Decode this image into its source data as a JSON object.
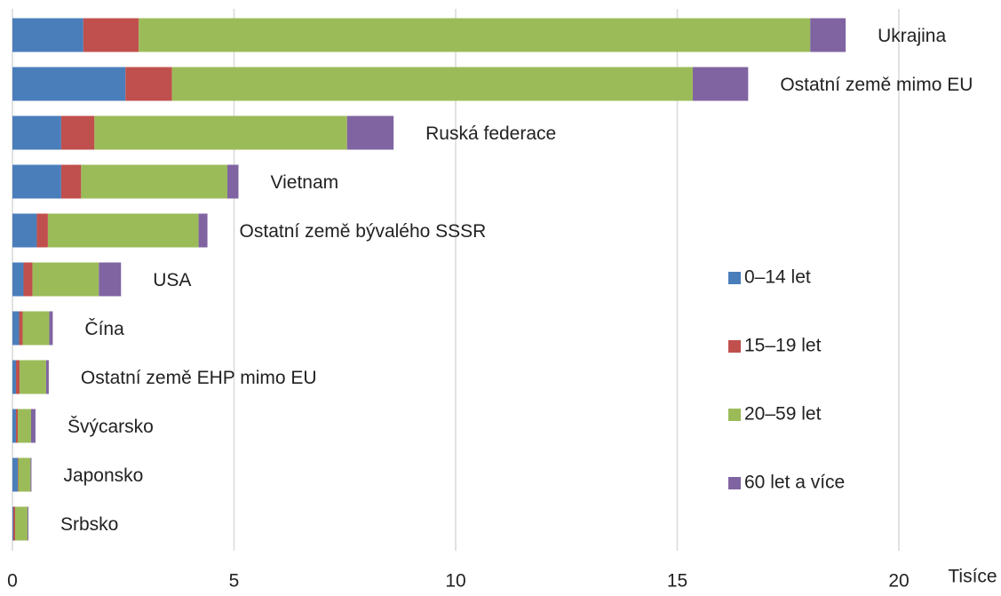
{
  "chart_data": {
    "type": "bar",
    "orientation": "horizontal",
    "stacked": true,
    "x_label": "Tisíce",
    "categories": [
      "Ukrajina",
      "Ostatní země mimo EU",
      "Ruská federace",
      "Vietnam",
      "Ostatní země bývalého SSSR",
      "USA",
      "Čína",
      "Ostatní země EHP mimo EU",
      "Švýcarsko",
      "Japonsko",
      "Srbsko"
    ],
    "series": [
      {
        "name": "0–14 let",
        "color": "#4a7ebb",
        "values": [
          1.6,
          2.55,
          1.1,
          1.1,
          0.55,
          0.25,
          0.15,
          0.08,
          0.08,
          0.12,
          0.02
        ]
      },
      {
        "name": "15–19 let",
        "color": "#c0504d",
        "values": [
          1.25,
          1.05,
          0.75,
          0.45,
          0.25,
          0.2,
          0.08,
          0.08,
          0.04,
          0.01,
          0.04
        ]
      },
      {
        "name": "20–59 let",
        "color": "#9bbb59",
        "values": [
          15.15,
          11.75,
          5.7,
          3.3,
          3.4,
          1.5,
          0.6,
          0.6,
          0.3,
          0.28,
          0.28
        ]
      },
      {
        "name": "60 let a více",
        "color": "#8064a2",
        "values": [
          0.8,
          1.25,
          1.05,
          0.25,
          0.2,
          0.5,
          0.08,
          0.06,
          0.1,
          0.02,
          0.02
        ]
      }
    ],
    "xlim": [
      0,
      22.5
    ],
    "xticks": [
      0,
      5,
      10,
      15,
      20
    ],
    "grid": true,
    "legend": "right"
  }
}
